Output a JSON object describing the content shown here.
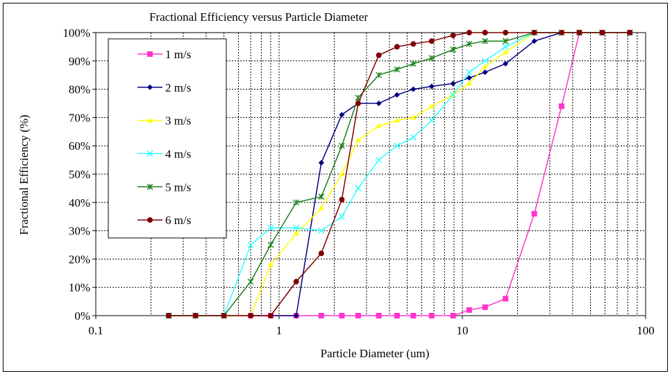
{
  "chart_data": {
    "type": "line",
    "title": "Fractional Efficiency versus Particle Diameter",
    "xlabel": "Particle Diameter (um)",
    "ylabel": "Fractional Efficiency (%)",
    "xscale": "log",
    "xlim": [
      0.1,
      100
    ],
    "ylim": [
      0,
      100
    ],
    "x_tick_labels": [
      "0.1",
      "1",
      "10",
      "100"
    ],
    "y_tick_labels": [
      "0%",
      "10%",
      "20%",
      "30%",
      "40%",
      "50%",
      "60%",
      "70%",
      "80%",
      "90%",
      "100%"
    ],
    "grid": true,
    "legend_position": "top-left",
    "series": [
      {
        "name": "1 m/s",
        "color": "#ff33cc",
        "marker": "square",
        "x": [
          0.25,
          0.35,
          0.5,
          0.7,
          0.9,
          1.24,
          1.7,
          2.2,
          2.7,
          3.5,
          4.4,
          5.4,
          6.8,
          8.9,
          10.9,
          13.3,
          17.2,
          24.7,
          34.8,
          43.5,
          58.0,
          82.0
        ],
        "y": [
          0,
          0,
          0,
          0,
          0,
          0,
          0,
          0,
          0,
          0,
          0,
          0,
          0,
          0,
          2,
          3,
          6,
          36,
          74,
          100,
          100,
          100
        ]
      },
      {
        "name": "2 m/s",
        "color": "#000080",
        "marker": "diamond",
        "x": [
          0.25,
          0.35,
          0.5,
          0.7,
          0.9,
          1.24,
          1.7,
          2.2,
          2.7,
          3.5,
          4.4,
          5.4,
          6.8,
          8.9,
          10.9,
          13.3,
          17.2,
          24.7,
          34.8,
          43.5,
          58.0,
          82.0
        ],
        "y": [
          0,
          0,
          0,
          0,
          0,
          0,
          54,
          71,
          75,
          75,
          78,
          80,
          81,
          82,
          84,
          86,
          89,
          97,
          100,
          100,
          100,
          100
        ]
      },
      {
        "name": "3 m/s",
        "color": "#ffff00",
        "marker": "triangle",
        "x": [
          0.25,
          0.35,
          0.5,
          0.7,
          0.9,
          1.24,
          1.7,
          2.2,
          2.7,
          3.5,
          4.4,
          5.4,
          6.8,
          8.9,
          10.9,
          13.3,
          17.2,
          24.7,
          34.8,
          43.5,
          58.0,
          82.0
        ],
        "y": [
          0,
          0,
          0,
          0,
          18,
          29,
          38,
          50,
          62,
          67,
          69,
          70,
          74,
          78,
          82,
          88,
          93,
          100,
          100,
          100,
          100,
          100
        ]
      },
      {
        "name": "4 m/s",
        "color": "#33ffff",
        "marker": "x",
        "x": [
          0.25,
          0.35,
          0.5,
          0.7,
          0.9,
          1.24,
          1.7,
          2.2,
          2.7,
          3.5,
          4.4,
          5.4,
          6.8,
          8.9,
          10.9,
          13.3,
          17.2,
          24.7,
          34.8,
          43.5,
          58.0,
          82.0
        ],
        "y": [
          0,
          0,
          0,
          25,
          31,
          31,
          30,
          35,
          45,
          55,
          60,
          63,
          69,
          78,
          86,
          90,
          95,
          100,
          100,
          100,
          100,
          100
        ]
      },
      {
        "name": "5 m/s",
        "color": "#1a801a",
        "marker": "star",
        "x": [
          0.25,
          0.35,
          0.5,
          0.7,
          0.9,
          1.24,
          1.7,
          2.2,
          2.7,
          3.5,
          4.4,
          5.4,
          6.8,
          8.9,
          10.9,
          13.3,
          17.2,
          24.7,
          34.8,
          43.5,
          58.0,
          82.0
        ],
        "y": [
          0,
          0,
          0,
          12,
          25,
          40,
          42,
          60,
          77,
          85,
          87,
          89,
          91,
          94,
          96,
          97,
          97,
          100,
          100,
          100,
          100,
          100
        ]
      },
      {
        "name": "6 m/s",
        "color": "#800000",
        "marker": "circle",
        "x": [
          0.25,
          0.35,
          0.5,
          0.7,
          0.9,
          1.24,
          1.7,
          2.2,
          2.7,
          3.5,
          4.4,
          5.4,
          6.8,
          8.9,
          10.9,
          13.3,
          17.2,
          24.7,
          34.8,
          43.5,
          58.0,
          82.0
        ],
        "y": [
          0,
          0,
          0,
          0,
          0,
          12,
          22,
          41,
          75,
          92,
          95,
          96,
          97,
          99,
          100,
          100,
          100,
          100,
          100,
          100,
          100,
          100
        ]
      }
    ]
  }
}
